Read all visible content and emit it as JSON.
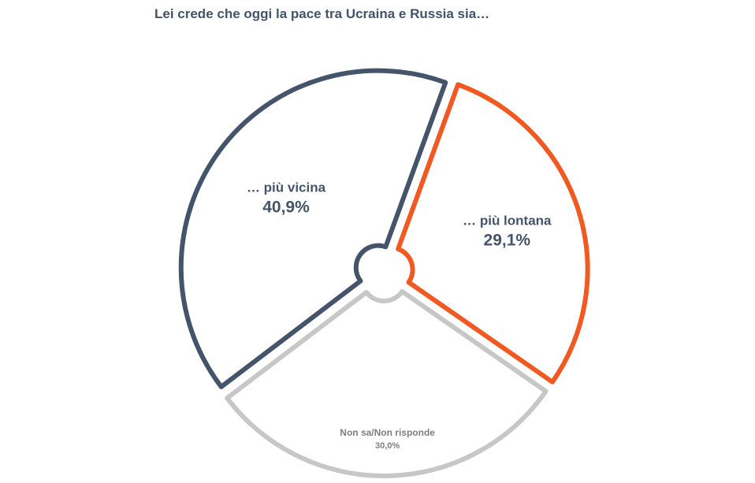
{
  "chart_data": {
    "type": "pie",
    "title": "Lei crede che oggi la pace tra Ucraina e Russia sia…",
    "slices": [
      {
        "label": "… più vicina",
        "value": 40.9,
        "value_label": "40,9%",
        "color": "#44546a"
      },
      {
        "label": "… più lontana",
        "value": 29.1,
        "value_label": "29,1%",
        "color": "#f05a22"
      },
      {
        "label": "Non sa/Non risponde",
        "value": 30.0,
        "value_label": "30,0%",
        "color": "#c7c7c7"
      }
    ]
  }
}
